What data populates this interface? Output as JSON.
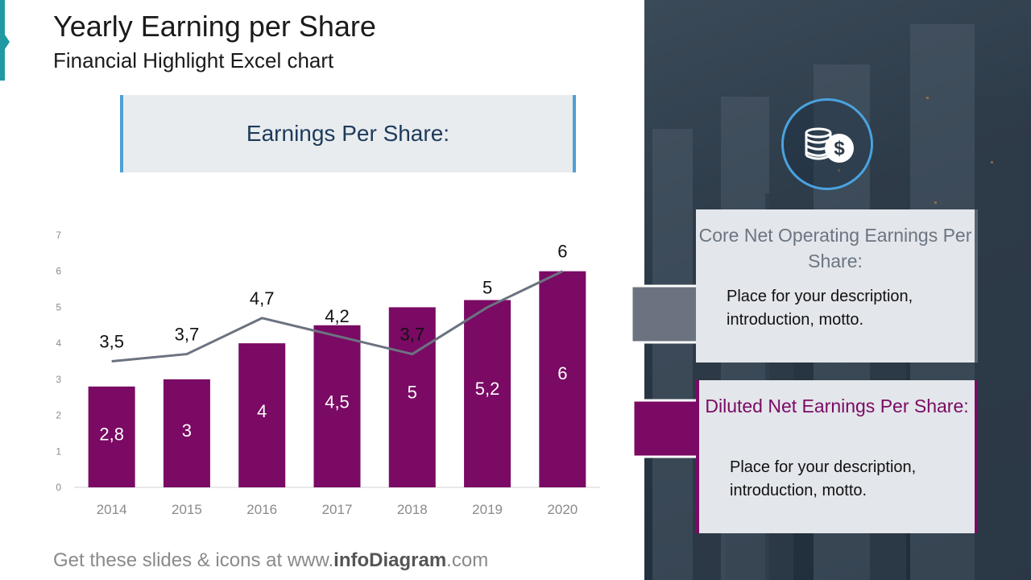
{
  "header": {
    "title": "Yearly Earning per Share",
    "subtitle": "Financial Highlight Excel chart"
  },
  "eps_box": {
    "label": "Earnings Per Share:"
  },
  "chart_data": {
    "type": "bar",
    "categories": [
      "2014",
      "2015",
      "2016",
      "2017",
      "2018",
      "2019",
      "2020"
    ],
    "series": [
      {
        "type": "bar",
        "values": [
          2.8,
          3,
          4,
          4.5,
          5,
          5.2,
          6
        ],
        "labels": [
          "2,8",
          "3",
          "4",
          "4,5",
          "5",
          "5,2",
          "6"
        ],
        "color": "#7a0a64"
      },
      {
        "type": "line",
        "values": [
          3.5,
          3.7,
          4.7,
          4.2,
          3.7,
          5,
          6
        ],
        "labels": [
          "3,5",
          "3,7",
          "4,7",
          "4,2",
          "3,7",
          "5",
          "6"
        ],
        "color": "#6b7380"
      }
    ],
    "y_ticks": [
      "0",
      "1",
      "2",
      "3",
      "4",
      "5",
      "6",
      "7"
    ],
    "ylim": [
      0,
      7
    ],
    "grid": false
  },
  "cards": {
    "core": {
      "heading": "Core Net Operating Earnings Per Share:",
      "description": "Place for your description, introduction, motto.",
      "color": "#5a6470"
    },
    "diluted": {
      "heading": "Diluted Net Earnings Per Share:",
      "description": "Place for your description, introduction, motto.",
      "color": "#7a0a64"
    }
  },
  "icons": {
    "coin": "coins-dollar-icon"
  },
  "footer": {
    "prefix": "Get these slides & icons at www.",
    "brand": "infoDiagram",
    "suffix": ".com"
  }
}
